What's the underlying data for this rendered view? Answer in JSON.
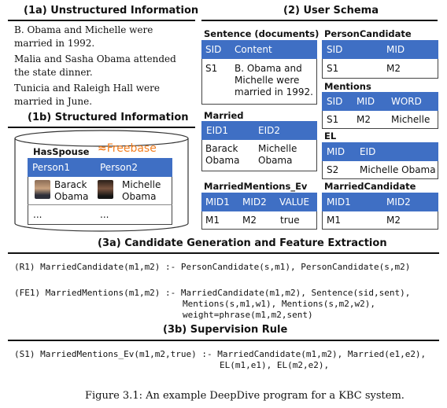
{
  "section_1a": {
    "title": "(1a) Unstructured Information",
    "sentences": [
      "B. Obama and Michelle were married in 1992.",
      "Malia and Sasha Obama attended the state dinner.",
      "Tunicia and Raleigh Hall were married in June."
    ]
  },
  "section_1b": {
    "title": "(1b) Structured Information",
    "table_name": "HasSpouse",
    "logo_text": "Freebase",
    "columns": [
      "Person1",
      "Person2"
    ],
    "row1": [
      "Barack Obama",
      "Michelle Obama"
    ],
    "row2": [
      "...",
      "..."
    ]
  },
  "section_2": {
    "title": "(2) User Schema",
    "sentence_table": {
      "name": "Sentence (documents)",
      "columns": [
        "SID",
        "Content"
      ],
      "row": [
        "S1",
        "B. Obama and Michelle were married in 1992."
      ]
    },
    "person_candidate": {
      "name": "PersonCandidate",
      "columns": [
        "SID",
        "MID"
      ],
      "row": [
        "S1",
        "M2"
      ]
    },
    "mentions": {
      "name": "Mentions",
      "columns": [
        "SID",
        "MID",
        "WORD"
      ],
      "row": [
        "S1",
        "M2",
        "Michelle"
      ]
    },
    "el": {
      "name": "EL",
      "columns": [
        "MID",
        "EID"
      ],
      "row": [
        "S2",
        "Michelle Obama"
      ]
    },
    "married": {
      "name": "Married",
      "columns": [
        "EID1",
        "EID2"
      ],
      "row": [
        "Barack Obama",
        "Michelle Obama"
      ]
    },
    "married_mentions_ev": {
      "name": "MarriedMentions_Ev",
      "columns": [
        "MID1",
        "MID2",
        "VALUE"
      ],
      "row": [
        "M1",
        "M2",
        "true"
      ]
    },
    "married_candidate": {
      "name": "MarriedCandidate",
      "columns": [
        "MID1",
        "MID2"
      ],
      "row": [
        "M1",
        "M2"
      ]
    }
  },
  "section_3a": {
    "title": "(3a) Candidate Generation and Feature Extraction",
    "r1": "(R1) MarriedCandidate(m1,m2) :- PersonCandidate(s,m1), PersonCandidate(s,m2)",
    "fe1_line1": "(FE1) MarriedMentions(m1,m2) :- MarriedCandidate(m1,m2), Sentence(sid,sent),",
    "fe1_line2": "Mentions(s,m1,w1), Mentions(s,m2,w2),",
    "fe1_line3": "weight=phrase(m1,m2,sent)"
  },
  "section_3b": {
    "title": "(3b) Supervision Rule",
    "s1_line1": "(S1) MarriedMentions_Ev(m1,m2,true) :- MarriedCandidate(m1,m2), Married(e1,e2),",
    "s1_line2": "EL(m1,e1), EL(m2,e2),"
  },
  "caption": "Figure 3.1: An example DeepDive program for a KBC system.",
  "colors": {
    "header_blue": "#3f6fc4",
    "freebase_orange": "#f47f20"
  }
}
